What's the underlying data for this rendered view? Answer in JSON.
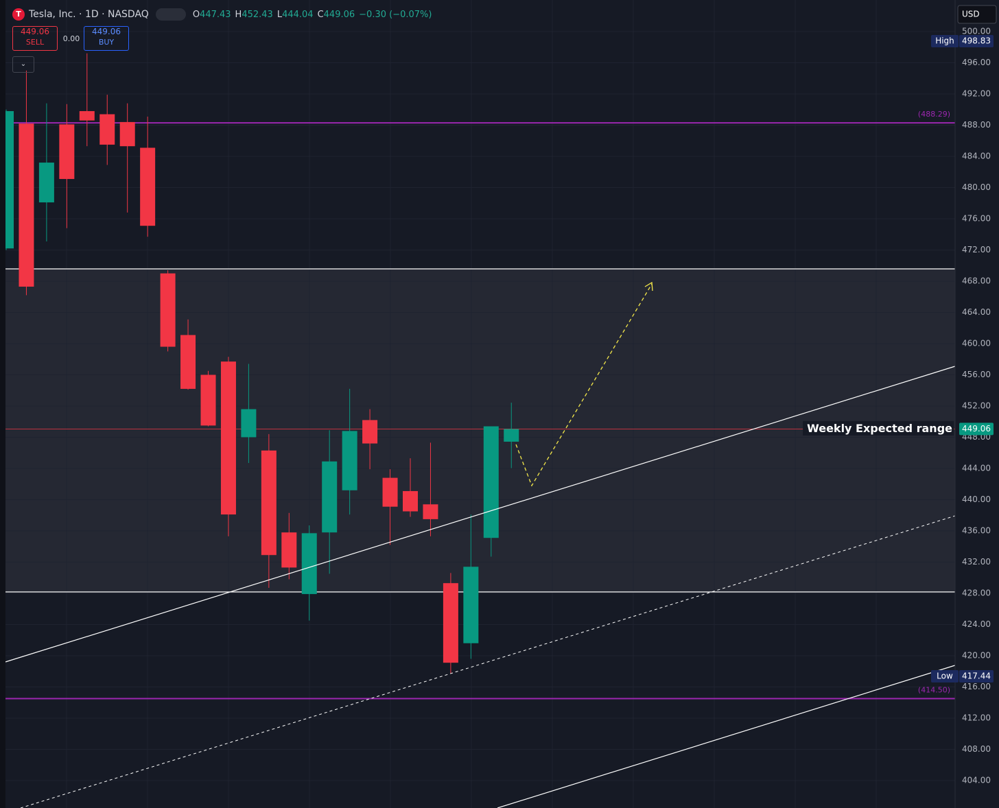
{
  "chart_data": {
    "type": "candlestick",
    "title": "Tesla, Inc. · 1D · NASDAQ",
    "currency": "USD",
    "header": [
      {
        "label": "O",
        "value": 447.43
      },
      {
        "label": "H",
        "value": 452.43
      },
      {
        "label": "L",
        "value": 444.04
      },
      {
        "label": "C",
        "value": 449.06
      }
    ],
    "change": "−0.30 (−0.07%)",
    "sell": {
      "price": 449.06,
      "label": "SELL"
    },
    "buy": {
      "price": 449.06,
      "label": "BUY"
    },
    "spread": "0.00",
    "open": [
      472.2,
      488.2,
      478.1,
      488.1,
      489.8,
      489.4,
      488.4,
      485.1,
      469.0,
      461.1,
      456.0,
      457.7,
      448.0,
      446.3,
      435.8,
      427.9,
      435.8,
      441.2,
      450.2,
      442.8,
      441.1,
      439.4,
      429.3,
      421.6,
      435.1,
      447.43
    ],
    "high": [
      490.0,
      495.0,
      490.8,
      490.7,
      497.2,
      491.9,
      490.8,
      489.1,
      469.4,
      463.1,
      456.5,
      458.3,
      457.4,
      448.4,
      438.3,
      436.7,
      448.9,
      454.2,
      451.6,
      443.9,
      445.3,
      447.3,
      430.6,
      438.1,
      449.4,
      452.43
    ],
    "low": [
      472.0,
      466.2,
      473.1,
      474.8,
      485.3,
      482.9,
      476.8,
      473.7,
      459.0,
      454.1,
      449.4,
      435.3,
      444.7,
      428.7,
      429.8,
      424.5,
      430.5,
      438.1,
      443.9,
      434.2,
      437.8,
      435.3,
      417.7,
      419.6,
      432.7,
      444.04
    ],
    "close": [
      489.8,
      467.3,
      483.2,
      481.1,
      488.6,
      485.5,
      485.3,
      475.1,
      459.6,
      454.2,
      449.5,
      438.1,
      451.6,
      432.9,
      431.3,
      435.7,
      444.9,
      448.8,
      447.2,
      439.1,
      438.5,
      437.5,
      419.1,
      431.4,
      449.4,
      449.06
    ],
    "up_color": "#089981",
    "down_color": "#f23645",
    "ylim": [
      400.48,
      504.04
    ],
    "yticks": [
      {
        "value": 500,
        "label": "500.00"
      },
      {
        "value": 496,
        "label": "496.00"
      },
      {
        "value": 492,
        "label": "492.00"
      },
      {
        "value": 488,
        "label": "488.00"
      },
      {
        "value": 484,
        "label": "484.00"
      },
      {
        "value": 480,
        "label": "480.00"
      },
      {
        "value": 476,
        "label": "476.00"
      },
      {
        "value": 472,
        "label": "472.00"
      },
      {
        "value": 468,
        "label": "468.00"
      },
      {
        "value": 464,
        "label": "464.00"
      },
      {
        "value": 460,
        "label": "460.00"
      },
      {
        "value": 456,
        "label": "456.00"
      },
      {
        "value": 452,
        "label": "452.00"
      },
      {
        "value": 448,
        "label": "448.00"
      },
      {
        "value": 444,
        "label": "444.00"
      },
      {
        "value": 440,
        "label": "440.00"
      },
      {
        "value": 436,
        "label": "436.00"
      },
      {
        "value": 432,
        "label": "432.00"
      },
      {
        "value": 428,
        "label": "428.00"
      },
      {
        "value": 424,
        "label": "424.00"
      },
      {
        "value": 420,
        "label": "420.00"
      },
      {
        "value": 416,
        "label": "416.00"
      },
      {
        "value": 412,
        "label": "412.00"
      },
      {
        "value": 408,
        "label": "408.00"
      },
      {
        "value": 404,
        "label": "404.00"
      }
    ],
    "levels": [
      {
        "value": 488.29,
        "label": "(488.29)",
        "color": "#9c27b0"
      },
      {
        "value": 414.5,
        "label": "(414.50)",
        "color": "#9c27b0"
      }
    ],
    "high_marker": {
      "label": "High",
      "value": 498.83
    },
    "low_marker": {
      "label": "Low",
      "value": 417.44
    },
    "last_price": 449.06,
    "annotation": "Weekly Expected range"
  }
}
